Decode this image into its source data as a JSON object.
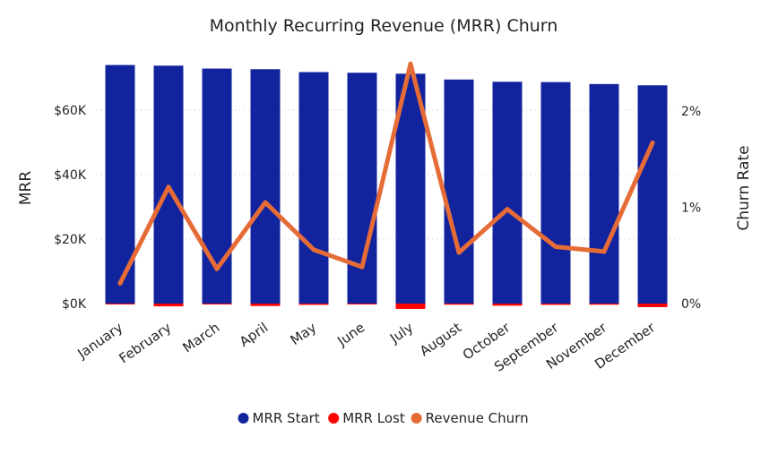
{
  "chart_data": {
    "type": "bar",
    "title": "Monthly Recurring Revenue (MRR) Churn",
    "categories": [
      "January",
      "February",
      "March",
      "April",
      "May",
      "June",
      "July",
      "August",
      "October",
      "September",
      "November",
      "December"
    ],
    "series": [
      {
        "name": "MRR Start",
        "kind": "bar",
        "axis": "left",
        "color": "#12239E",
        "values": [
          74000,
          73800,
          72900,
          72700,
          71800,
          71600,
          71300,
          69500,
          68800,
          68700,
          68100,
          67700
        ]
      },
      {
        "name": "MRR Lost",
        "kind": "bar",
        "axis": "left",
        "color": "#FF0000",
        "values": [
          -150,
          -850,
          -250,
          -750,
          -400,
          -250,
          -1650,
          -350,
          -650,
          -400,
          -350,
          -1100
        ]
      },
      {
        "name": "Revenue Churn",
        "kind": "line",
        "axis": "right",
        "color": "#E66C37",
        "values": [
          0.0021,
          0.0121,
          0.0036,
          0.0105,
          0.0056,
          0.0038,
          0.0249,
          0.0053,
          0.0098,
          0.0059,
          0.0054,
          0.0167
        ]
      }
    ],
    "y_left": {
      "label": "MRR",
      "min": 0,
      "max": 75000,
      "ticks": [
        0,
        20000,
        40000,
        60000
      ],
      "tick_labels": [
        "$0K",
        "$20K",
        "$40K",
        "$60K"
      ]
    },
    "y_right": {
      "label": "Churn Rate",
      "min": 0,
      "max": 0.025,
      "ticks": [
        0,
        0.01,
        0.02
      ],
      "tick_labels": [
        "0%",
        "1%",
        "2%"
      ]
    },
    "grid": true,
    "legend": {
      "position": "bottom-center",
      "entries": [
        "MRR Start",
        "MRR Lost",
        "Revenue Churn"
      ]
    }
  }
}
